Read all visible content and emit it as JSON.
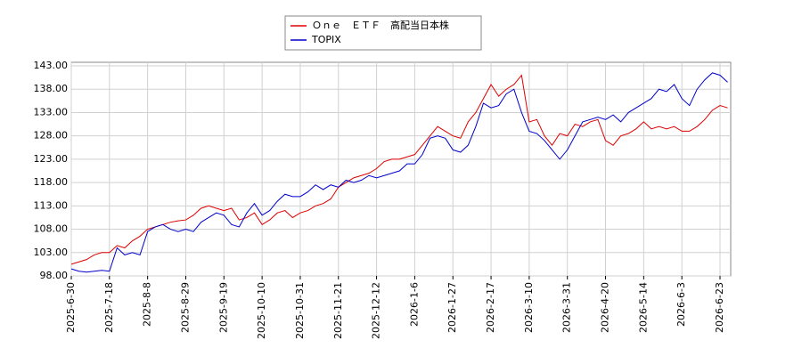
{
  "chart_data": {
    "type": "line",
    "categories": [
      "2025-6-30",
      null,
      null,
      null,
      null,
      "2025-7-18",
      null,
      null,
      null,
      null,
      "2025-8-8",
      null,
      null,
      null,
      null,
      "2025-8-29",
      null,
      null,
      null,
      null,
      "2025-9-19",
      null,
      null,
      null,
      null,
      "2025-10-10",
      null,
      null,
      null,
      null,
      "2025-10-31",
      null,
      null,
      null,
      null,
      "2025-11-21",
      null,
      null,
      null,
      null,
      "2025-12-12",
      null,
      null,
      null,
      null,
      "2026-1-6",
      null,
      null,
      null,
      null,
      "2026-1-27",
      null,
      null,
      null,
      null,
      "2026-2-17",
      null,
      null,
      null,
      null,
      "2026-3-10",
      null,
      null,
      null,
      null,
      "2026-3-31",
      null,
      null,
      null,
      null,
      "2026-4-20",
      null,
      null,
      null,
      null,
      "2026-5-14",
      null,
      null,
      null,
      null,
      "2026-6-3",
      null,
      null,
      null,
      null,
      "2026-6-23",
      null
    ],
    "series": [
      {
        "name": "Ｏｎｅ　ＥＴＦ　高配当日本株",
        "color": "#dd0000",
        "values": [
          100.5,
          101,
          101.5,
          102.5,
          103,
          103,
          104.5,
          104,
          105.5,
          106.5,
          108,
          108.5,
          109,
          109.5,
          109.8,
          110,
          111,
          112.5,
          113,
          112.5,
          112,
          112.5,
          110,
          110.5,
          111.5,
          109,
          110,
          111.5,
          112,
          110.5,
          111.5,
          112,
          113,
          113.5,
          114.5,
          117,
          118,
          119,
          119.5,
          120,
          121,
          122.5,
          123,
          123,
          123.5,
          124,
          126,
          128,
          130,
          129,
          128,
          127.5,
          131,
          133,
          136,
          139,
          136.5,
          138,
          139,
          141,
          131,
          131.5,
          128,
          126,
          128.5,
          128,
          130.5,
          130,
          131,
          131.5,
          127,
          126,
          128,
          128.5,
          129.5,
          131,
          129.5,
          130,
          129.5,
          130,
          129,
          129,
          130,
          131.5,
          133.5,
          134.5,
          134
        ]
      },
      {
        "name": "TOPIX",
        "color": "#0000cc",
        "values": [
          99.5,
          99,
          98.8,
          99,
          99.2,
          99,
          104,
          102.5,
          103,
          102.5,
          107.5,
          108.5,
          109,
          108,
          107.5,
          108,
          107.5,
          109.5,
          110.5,
          111.5,
          111,
          109,
          108.5,
          111.5,
          113.5,
          111,
          112,
          114,
          115.5,
          115,
          115,
          116,
          117.5,
          116.5,
          117.5,
          117,
          118.5,
          118,
          118.5,
          119.5,
          119,
          119.5,
          120,
          120.5,
          122,
          122,
          124,
          127.5,
          128,
          127.5,
          125,
          124.5,
          126,
          130,
          135,
          134,
          134.5,
          137,
          138,
          133,
          129,
          128.5,
          127,
          125,
          123,
          125,
          128,
          131,
          131.5,
          132,
          131.5,
          132.5,
          131,
          133,
          134,
          135,
          136,
          138,
          137.5,
          139,
          136,
          134.5,
          138,
          140,
          141.5,
          141,
          139.5
        ]
      }
    ],
    "ylim": [
      98,
      143
    ],
    "yticks": [
      {
        "value": 98,
        "label": "98.00"
      },
      {
        "value": 103,
        "label": "103.00"
      },
      {
        "value": 108,
        "label": "108.00"
      },
      {
        "value": 113,
        "label": "113.00"
      },
      {
        "value": 118,
        "label": "118.00"
      },
      {
        "value": 123,
        "label": "123.00"
      },
      {
        "value": 128,
        "label": "128.00"
      },
      {
        "value": 133,
        "label": "133.00"
      },
      {
        "value": 138,
        "label": "138.00"
      },
      {
        "value": 143,
        "label": "143.00"
      }
    ],
    "grid": true
  }
}
